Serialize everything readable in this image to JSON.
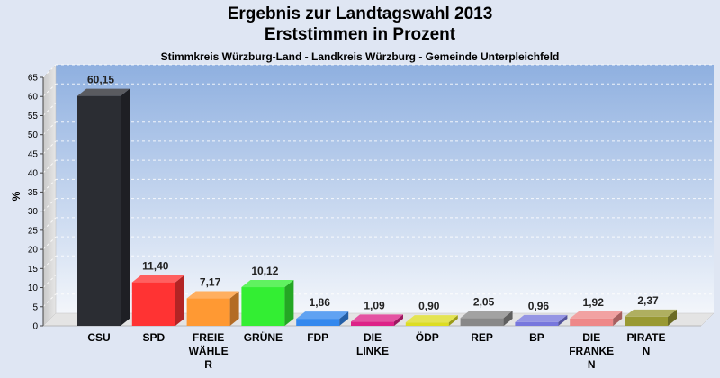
{
  "chart_data": {
    "type": "bar",
    "title": "Ergebnis zur Landtagswahl 2013",
    "title_line2": "Erststimmen in Prozent",
    "subtitle": "Stimmkreis Würzburg-Land - Landkreis Würzburg - Gemeinde Unterpleichfeld",
    "ylabel": "%",
    "ylim": [
      0,
      65
    ],
    "yticks": [
      0,
      5,
      10,
      15,
      20,
      25,
      30,
      35,
      40,
      45,
      50,
      55,
      60,
      65
    ],
    "grid": true,
    "categories": [
      "CSU",
      "SPD",
      "FREIE WÄHLER",
      "GRÜNE",
      "FDP",
      "DIE LINKE",
      "ÖDP",
      "REP",
      "BP",
      "DIE FRANKEN",
      "PIRATEN"
    ],
    "category_label_lines": [
      [
        "CSU"
      ],
      [
        "SPD"
      ],
      [
        "FREIE",
        "WÄHLE",
        "R"
      ],
      [
        "GRÜNE"
      ],
      [
        "FDP"
      ],
      [
        "DIE",
        "LINKE"
      ],
      [
        "ÖDP"
      ],
      [
        "REP"
      ],
      [
        "BP"
      ],
      [
        "DIE",
        "FRANKE",
        "N"
      ],
      [
        "PIRATE",
        "N"
      ]
    ],
    "values": [
      60.15,
      11.4,
      7.17,
      10.12,
      1.86,
      1.09,
      0.9,
      2.05,
      0.96,
      1.92,
      2.37
    ],
    "value_labels": [
      "60,15",
      "11,40",
      "7,17",
      "10,12",
      "1,86",
      "1,09",
      "0,90",
      "2,05",
      "0,96",
      "1,92",
      "2,37"
    ],
    "colors": [
      "#2b2d33",
      "#ff3333",
      "#ff9933",
      "#33ee33",
      "#3388ee",
      "#dd2288",
      "#dddd22",
      "#888888",
      "#7777dd",
      "#ee8888",
      "#999933"
    ]
  }
}
